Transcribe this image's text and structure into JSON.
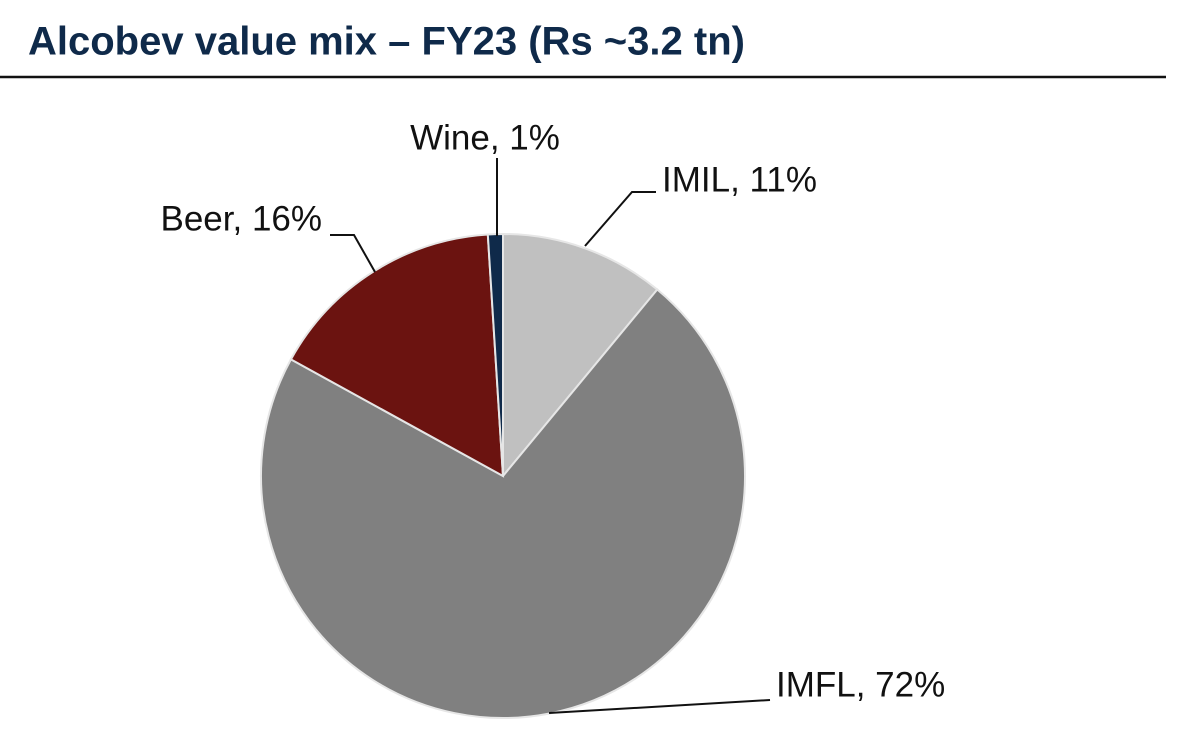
{
  "chart_data": {
    "type": "pie",
    "title": "Alcobev value mix – FY23 (Rs ~3.2 tn)",
    "values": [
      11,
      72,
      16,
      1
    ],
    "value_labels": [
      "IMIL, 11%",
      "IMFL, 72%",
      "Beer, 16%",
      "Wine, 1%"
    ],
    "colors": [
      "#c0c0c0",
      "#808080",
      "#6b1310",
      "#0f2a4a"
    ]
  }
}
